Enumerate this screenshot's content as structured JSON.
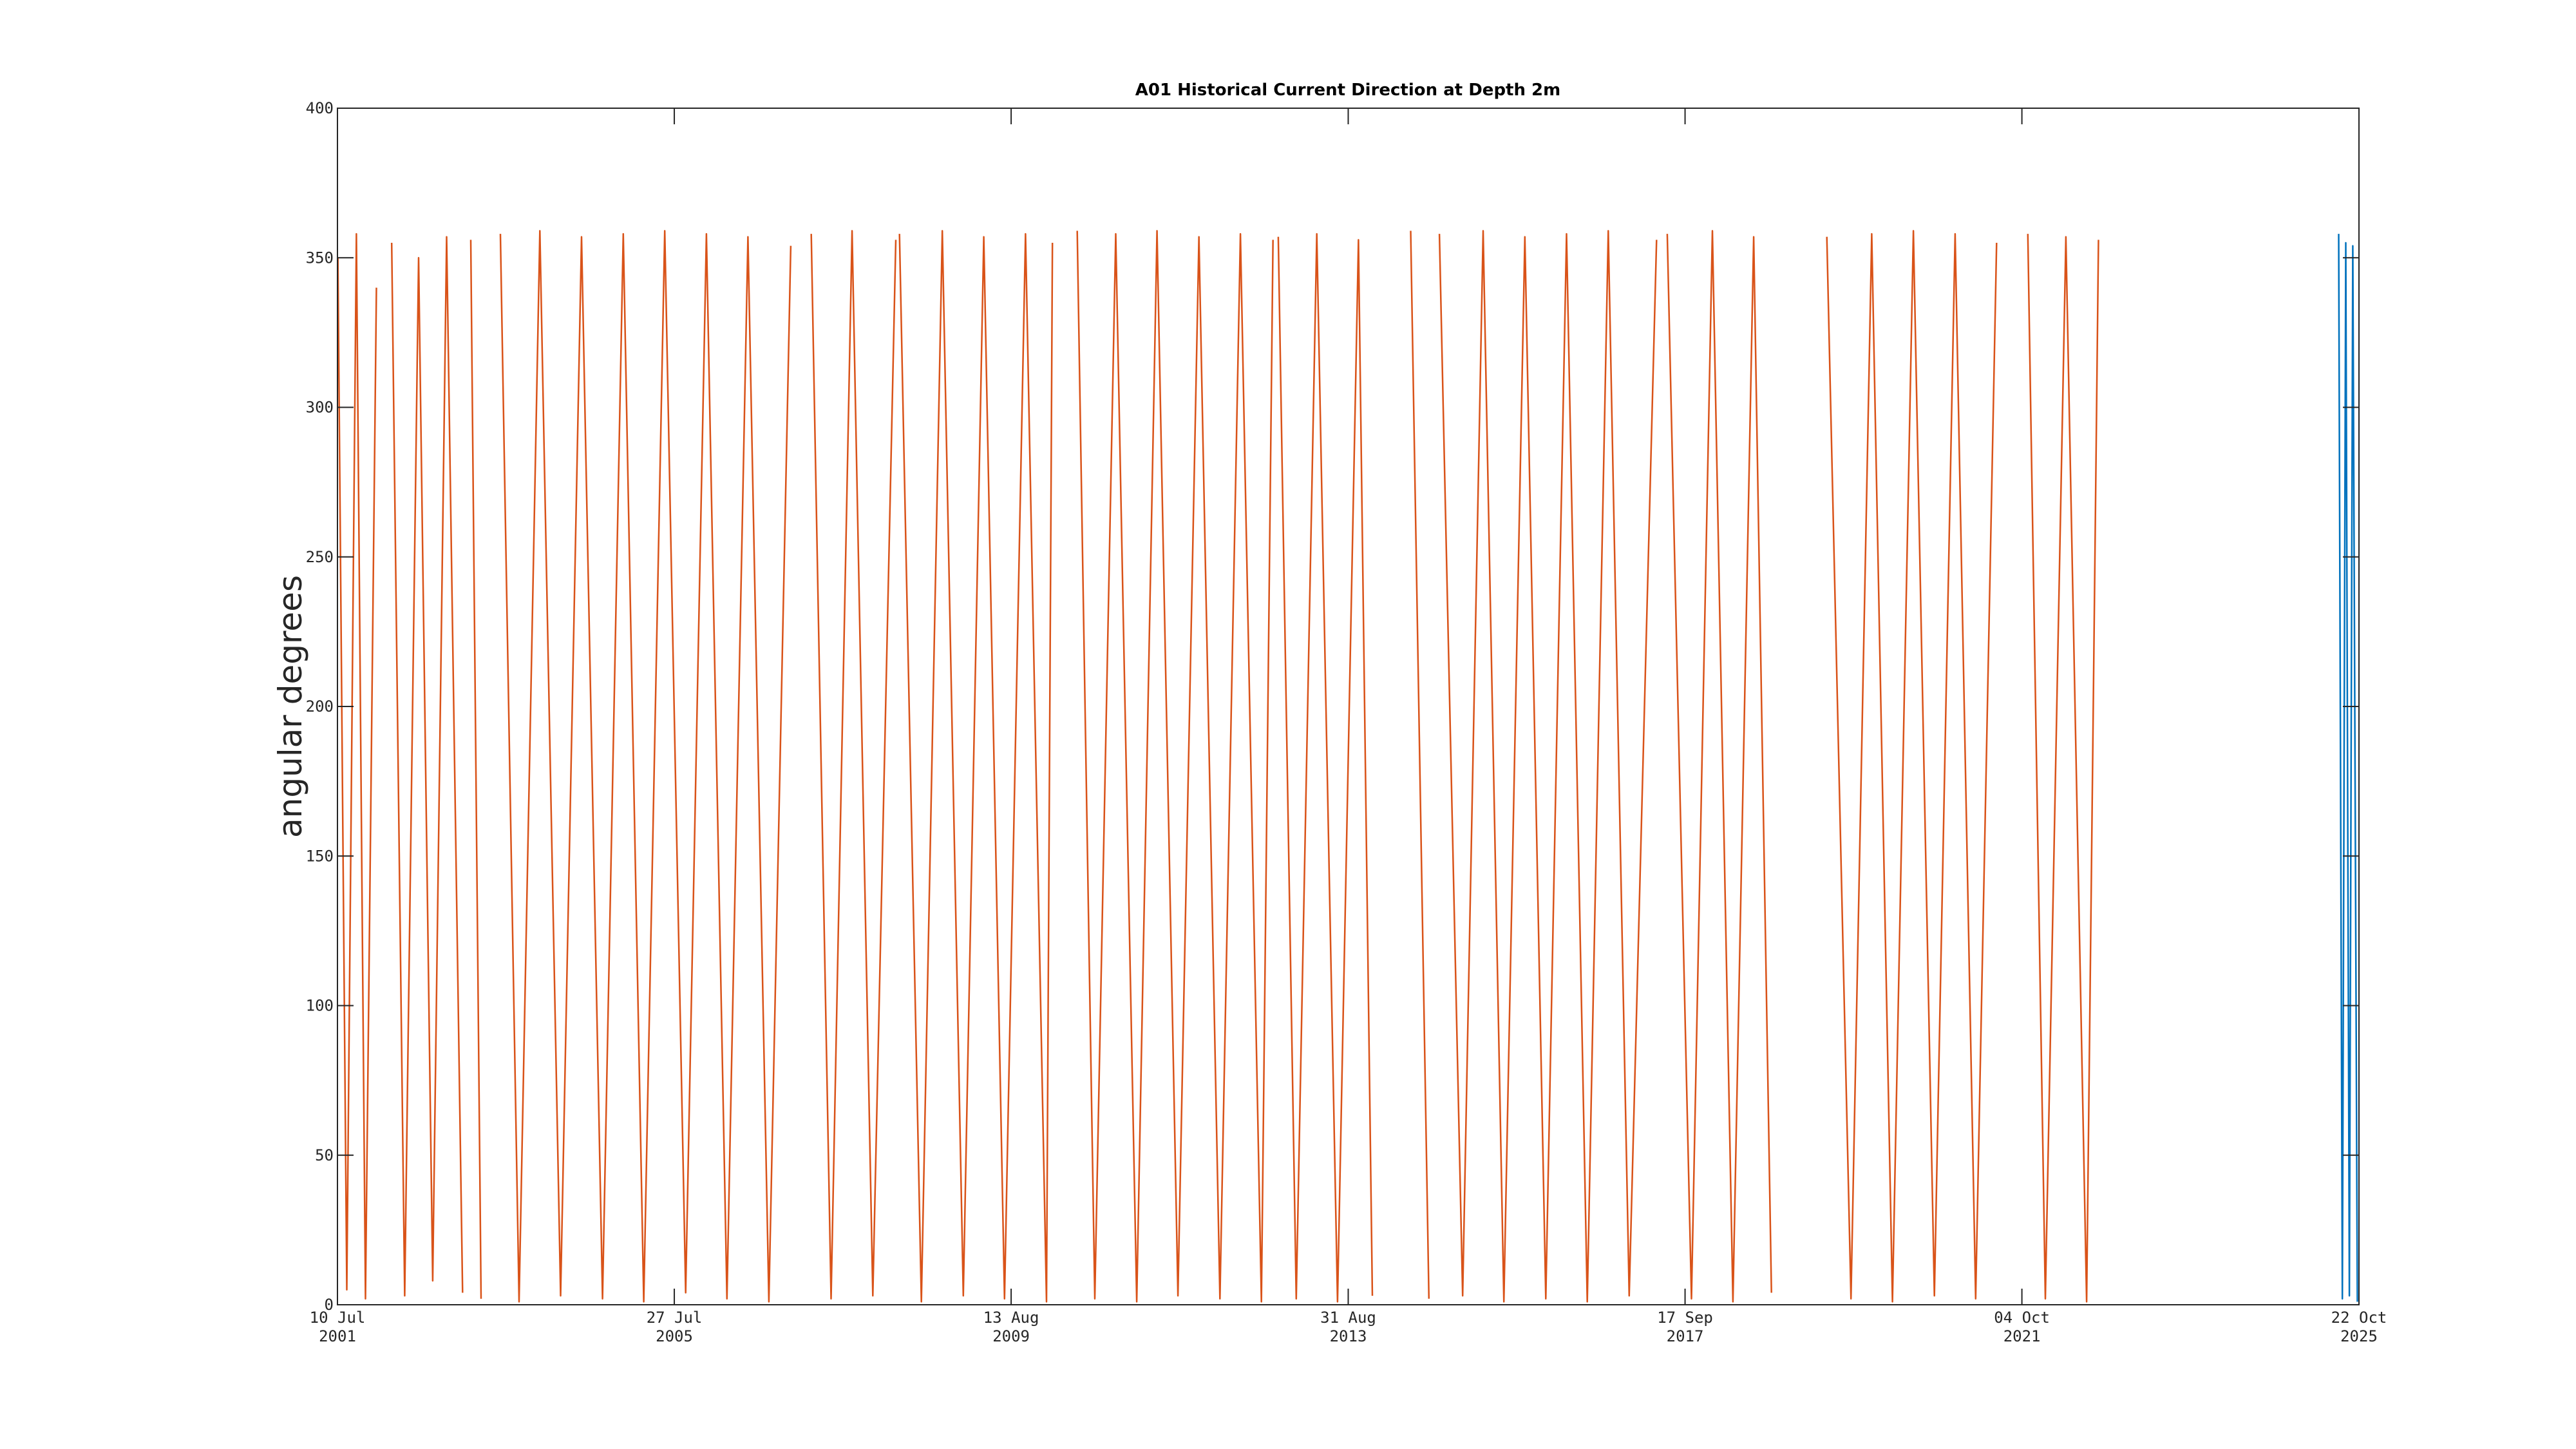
{
  "chart_data": {
    "type": "line",
    "title": "A01 Historical Current Direction at Depth 2m",
    "y_label": "angular degrees",
    "xlim": [
      "2001-07-10",
      "2025-10-22"
    ],
    "xticks": [
      {
        "value": "2001-07-10",
        "label": "10 Jul",
        "year_label": "2001"
      },
      {
        "value": "2005-07-27",
        "label": "27 Jul",
        "year_label": "2005"
      },
      {
        "value": "2009-08-13",
        "label": "13 Aug",
        "year_label": "2009"
      },
      {
        "value": "2013-08-31",
        "label": "31 Aug",
        "year_label": "2013"
      },
      {
        "value": "2017-09-17",
        "label": "17 Sep",
        "year_label": "2017"
      },
      {
        "value": "2021-10-04",
        "label": "04 Oct",
        "year_label": "2021"
      },
      {
        "value": "2025-10-22",
        "label": "22 Oct",
        "year_label": "2025"
      }
    ],
    "ylim": [
      0,
      400
    ],
    "yticks": [
      0,
      50,
      100,
      150,
      200,
      250,
      300,
      350,
      400
    ],
    "grid": false,
    "series": [
      {
        "color": "#d95319",
        "x": [
          "2001-07-12",
          "2001-08-20",
          "2001-10-01",
          "2001-11-10",
          "2001-12-28",
          "2002-02-01",
          "2002-03-05",
          "2002-05-01",
          "2002-07-01",
          "2002-09-01",
          "2002-11-01",
          "2003-01-10",
          "2003-01-30",
          "2003-02-15",
          "2003-04-01",
          "2003-05-01",
          "2003-06-25",
          "2003-09-15",
          "2003-12-15",
          "2004-03-15",
          "2004-06-15",
          "2004-09-15",
          "2004-12-15",
          "2005-03-15",
          "2005-06-15",
          "2005-09-15",
          "2005-12-15",
          "2006-03-15",
          "2006-06-15",
          "2006-09-15",
          "2006-12-20",
          "2007-02-01",
          "2007-03-20",
          "2007-06-15",
          "2007-09-15",
          "2007-12-15",
          "2008-03-25",
          "2008-04-01",
          "2008-04-10",
          "2008-07-15",
          "2008-10-15",
          "2009-01-15",
          "2009-04-15",
          "2009-07-15",
          "2009-10-15",
          "2010-01-15",
          "2010-02-10",
          "2010-04-01",
          "2010-05-30",
          "2010-08-15",
          "2010-11-15",
          "2011-02-15",
          "2011-05-15",
          "2011-08-15",
          "2011-11-15",
          "2012-02-15",
          "2012-05-15",
          "2012-08-15",
          "2012-10-05",
          "2012-10-20",
          "2012-10-28",
          "2013-01-15",
          "2013-04-15",
          "2013-07-15",
          "2013-10-15",
          "2013-12-15",
          "2014-03-01",
          "2014-06-01",
          "2014-08-20",
          "2014-09-15",
          "2014-10-05",
          "2015-01-15",
          "2015-04-15",
          "2015-07-15",
          "2015-10-15",
          "2016-01-15",
          "2016-04-15",
          "2016-07-15",
          "2016-10-15",
          "2017-01-15",
          "2017-05-15",
          "2017-06-10",
          "2017-07-01",
          "2017-10-15",
          "2018-01-15",
          "2018-04-15",
          "2018-07-15",
          "2018-10-01",
          "2019-02-01",
          "2019-06-01",
          "2019-09-15",
          "2019-12-15",
          "2020-03-15",
          "2020-06-15",
          "2020-09-15",
          "2020-12-15",
          "2021-03-15",
          "2021-06-15",
          "2021-09-01",
          "2021-10-30",
          "2022-01-15",
          "2022-04-15",
          "2022-07-15",
          "2022-09-05"
        ],
        "values": [
          350,
          5,
          358,
          2,
          340,
          null,
          355,
          3,
          350,
          8,
          357,
          4,
          null,
          356,
          2,
          null,
          358,
          1,
          359,
          3,
          357,
          2,
          358,
          1,
          359,
          4,
          358,
          2,
          357,
          1,
          354,
          null,
          358,
          2,
          359,
          3,
          356,
          null,
          358,
          1,
          359,
          3,
          357,
          2,
          358,
          1,
          355,
          null,
          359,
          2,
          358,
          1,
          359,
          3,
          357,
          2,
          358,
          1,
          356,
          null,
          357,
          2,
          358,
          1,
          356,
          3,
          null,
          359,
          2,
          null,
          358,
          3,
          359,
          1,
          357,
          2,
          358,
          1,
          359,
          3,
          356,
          null,
          358,
          2,
          359,
          1,
          357,
          4,
          null,
          357,
          2,
          358,
          1,
          359,
          3,
          358,
          2,
          355,
          null,
          358,
          2,
          357,
          1,
          356
        ]
      },
      {
        "color": "#0072bd",
        "x": [
          "2025-07-25",
          "2025-08-10",
          "2025-08-25",
          "2025-09-10",
          "2025-09-25",
          "2025-10-15"
        ],
        "values": [
          358,
          2,
          355,
          3,
          354,
          1
        ]
      }
    ]
  }
}
